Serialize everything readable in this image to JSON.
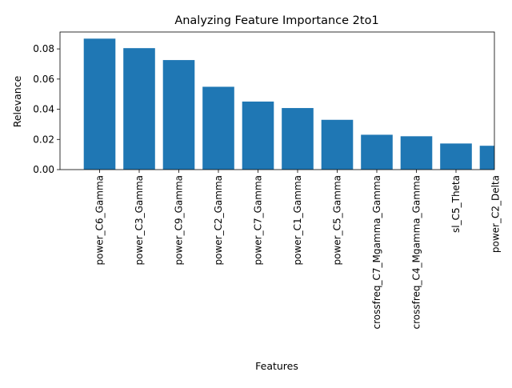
{
  "chart_data": {
    "type": "bar",
    "title": "Analyzing Feature Importance 2to1",
    "xlabel": "Features",
    "ylabel": "Relevance",
    "categories": [
      "power_C6_Gamma",
      "power_C3_Gamma",
      "power_C9_Gamma",
      "power_C2_Gamma",
      "power_C7_Gamma",
      "power_C1_Gamma",
      "power_C5_Gamma",
      "crossfreq_C7_Mgamma_Gamma",
      "crossfreq_C4_Mgamma_Gamma",
      "sl_C5_Theta",
      "power_C2_Delta"
    ],
    "values": [
      0.0868,
      0.0805,
      0.0726,
      0.0549,
      0.0451,
      0.0408,
      0.033,
      0.0231,
      0.0221,
      0.0173,
      0.0158
    ],
    "yticks": [
      "0.00",
      "0.02",
      "0.04",
      "0.06",
      "0.08"
    ],
    "ylim": [
      0,
      0.0912
    ],
    "bar_color": "#1f77b4",
    "grid": false,
    "legend": "none"
  }
}
